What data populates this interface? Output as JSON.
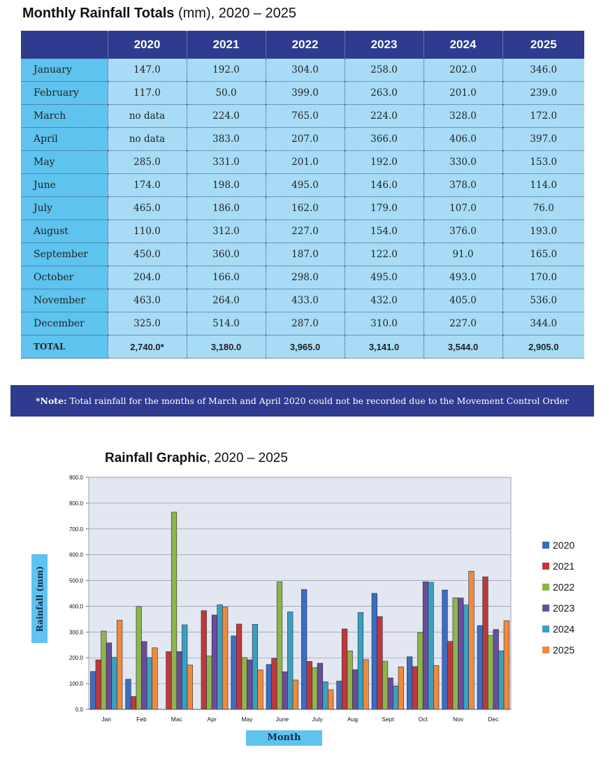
{
  "table": {
    "title_bold": "Monthly Rainfall Totals",
    "title_rest": " (mm), 2020 – 2025",
    "headers": [
      "",
      "2020",
      "2021",
      "2022",
      "2023",
      "2024",
      "2025"
    ],
    "rows": [
      {
        "label": "January",
        "values": [
          "147.0",
          "192.0",
          "304.0",
          "258.0",
          "202.0",
          "346.0"
        ]
      },
      {
        "label": "February",
        "values": [
          "117.0",
          "50.0",
          "399.0",
          "263.0",
          "201.0",
          "239.0"
        ]
      },
      {
        "label": "March",
        "values": [
          "no data",
          "224.0",
          "765.0",
          "224.0",
          "328.0",
          "172.0"
        ]
      },
      {
        "label": "April",
        "values": [
          "no data",
          "383.0",
          "207.0",
          "366.0",
          "406.0",
          "397.0"
        ]
      },
      {
        "label": "May",
        "values": [
          "285.0",
          "331.0",
          "201.0",
          "192.0",
          "330.0",
          "153.0"
        ]
      },
      {
        "label": "June",
        "values": [
          "174.0",
          "198.0",
          "495.0",
          "146.0",
          "378.0",
          "114.0"
        ]
      },
      {
        "label": "July",
        "values": [
          "465.0",
          "186.0",
          "162.0",
          "179.0",
          "107.0",
          "76.0"
        ]
      },
      {
        "label": "August",
        "values": [
          "110.0",
          "312.0",
          "227.0",
          "154.0",
          "376.0",
          "193.0"
        ]
      },
      {
        "label": "September",
        "values": [
          "450.0",
          "360.0",
          "187.0",
          "122.0",
          "91.0",
          "165.0"
        ]
      },
      {
        "label": "October",
        "values": [
          "204.0",
          "166.0",
          "298.0",
          "495.0",
          "493.0",
          "170.0"
        ]
      },
      {
        "label": "November",
        "values": [
          "463.0",
          "264.0",
          "433.0",
          "432.0",
          "405.0",
          "536.0"
        ]
      },
      {
        "label": "December",
        "values": [
          "325.0",
          "514.0",
          "287.0",
          "310.0",
          "227.0",
          "344.0"
        ]
      }
    ],
    "total": {
      "label": "TOTAL",
      "values": [
        "2,740.0*",
        "3,180.0",
        "3,965.0",
        "3,141.0",
        "3,544.0",
        "2,905.0"
      ]
    }
  },
  "note": {
    "bold": "*Note:",
    "text": " Total rainfall for the months of March and April 2020 could not be recorded due to the Movement Control Order"
  },
  "chart_data": {
    "type": "bar",
    "title_bold": "Rainfall Graphic",
    "title_rest": ", 2020 – 2025",
    "xlabel": "Month",
    "ylabel": "Rainfall  (mm)",
    "ylim": [
      0,
      900
    ],
    "yticks": [
      "0.0",
      "100.0",
      "200.0",
      "300.0",
      "400.0",
      "500.0",
      "600.0",
      "700.0",
      "800.0",
      "900.0"
    ],
    "grid": true,
    "legend": "right",
    "categories": [
      "Jan",
      "Feb",
      "Mac",
      "Apr",
      "May",
      "June",
      "July",
      "Aug",
      "Sept",
      "Oct",
      "Nov",
      "Dec"
    ],
    "series": [
      {
        "name": "2020",
        "color": "#3d6cc0",
        "values": [
          147,
          117,
          0,
          0,
          285,
          174,
          465,
          110,
          450,
          204,
          463,
          325
        ]
      },
      {
        "name": "2021",
        "color": "#c0383a",
        "values": [
          192,
          50,
          224,
          383,
          331,
          198,
          186,
          312,
          360,
          166,
          264,
          514
        ]
      },
      {
        "name": "2022",
        "color": "#8db54c",
        "values": [
          304,
          399,
          765,
          207,
          201,
          495,
          162,
          227,
          187,
          298,
          433,
          287
        ]
      },
      {
        "name": "2023",
        "color": "#6b4c9a",
        "values": [
          258,
          263,
          224,
          366,
          192,
          146,
          179,
          154,
          122,
          495,
          432,
          310
        ]
      },
      {
        "name": "2024",
        "color": "#3aa0c0",
        "values": [
          202,
          201,
          328,
          406,
          330,
          378,
          107,
          376,
          91,
          493,
          405,
          227
        ]
      },
      {
        "name": "2025",
        "color": "#f08a3c",
        "values": [
          346,
          239,
          172,
          397,
          153,
          114,
          76,
          193,
          165,
          170,
          536,
          344
        ]
      }
    ]
  }
}
